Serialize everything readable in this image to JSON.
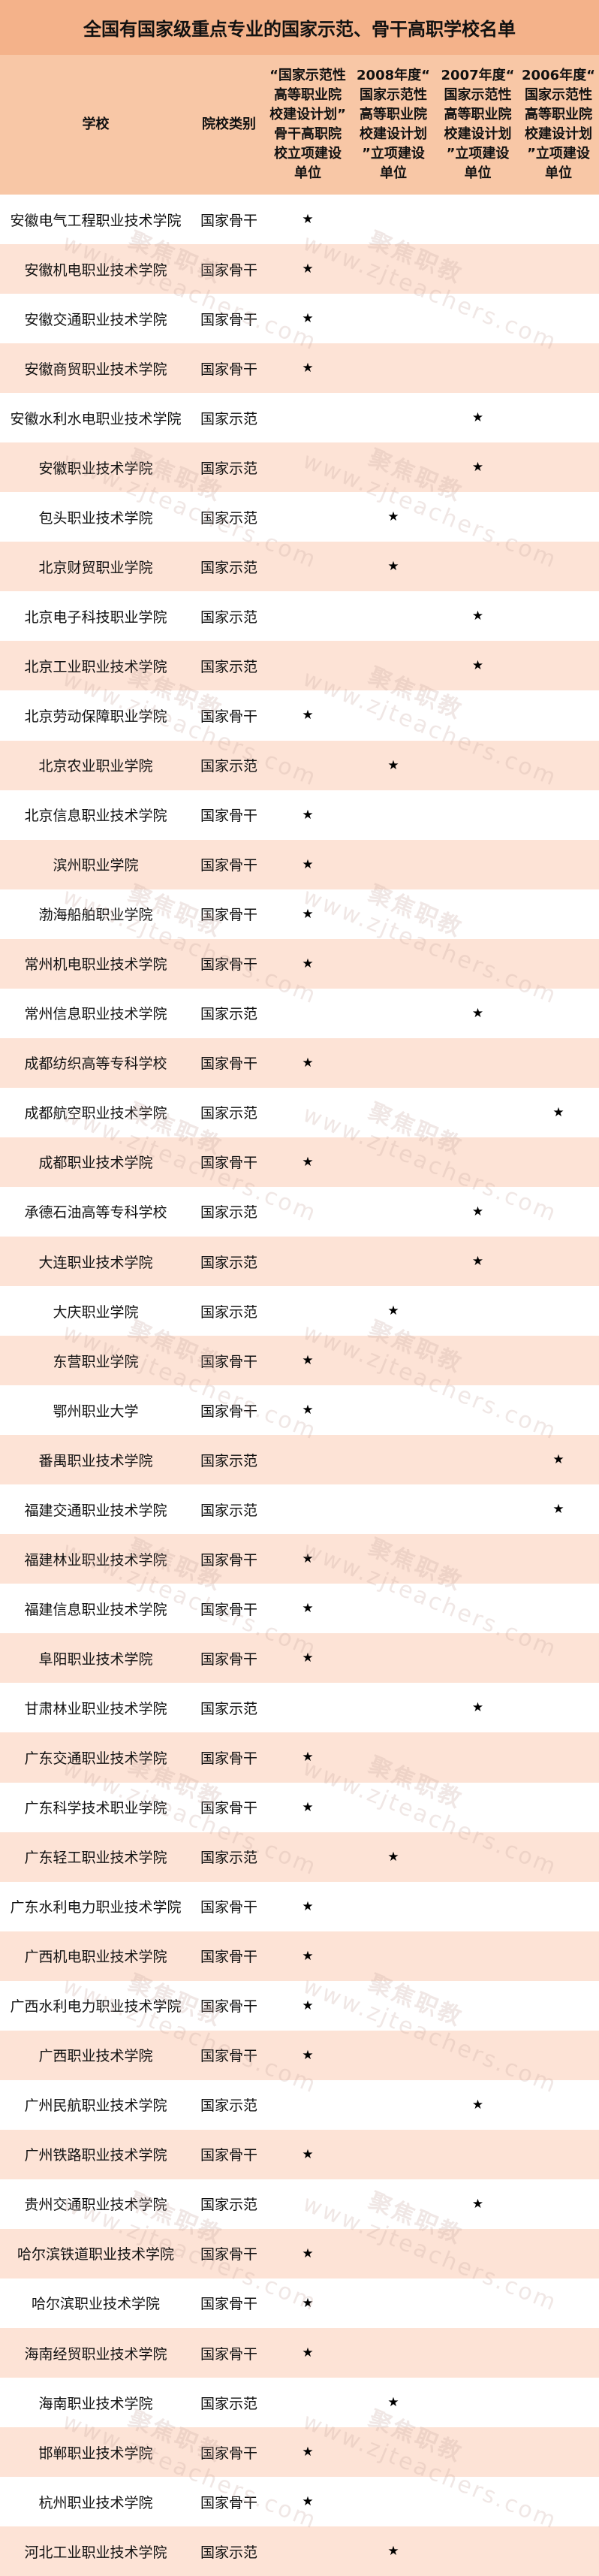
{
  "title": "全国有国家级重点专业的国家示范、骨干高职学校名单",
  "headers": [
    "学校",
    "院校类别",
    "“国家示范性\n高等职业院\n校建设计划”\n骨干高职院\n校立项建设\n单位",
    "2008年度“\n国家示范性\n高等职业院\n校建设计划\n”立项建设\n单位",
    "2007年度“\n国家示范性\n高等职业院\n校建设计划\n”立项建设\n单位",
    "2006年度“\n国家示范性\n高等职业院\n校建设计划\n”立项建设\n单位"
  ],
  "star_symbol": "★",
  "watermark": {
    "brand": "聚焦职教",
    "url": "www.zjteachers.com"
  },
  "colors": {
    "title_band": "#f4b28a",
    "header_row": "#f8c7a6",
    "stripe": "#fde3d6"
  },
  "rows": [
    {
      "school": "安徽电气工程职业技术学院",
      "type": "国家骨干",
      "col": 0
    },
    {
      "school": "安徽机电职业技术学院",
      "type": "国家骨干",
      "col": 0
    },
    {
      "school": "安徽交通职业技术学院",
      "type": "国家骨干",
      "col": 0
    },
    {
      "school": "安徽商贸职业技术学院",
      "type": "国家骨干",
      "col": 0
    },
    {
      "school": "安徽水利水电职业技术学院",
      "type": "国家示范",
      "col": 2
    },
    {
      "school": "安徽职业技术学院",
      "type": "国家示范",
      "col": 2
    },
    {
      "school": "包头职业技术学院",
      "type": "国家示范",
      "col": 1
    },
    {
      "school": "北京财贸职业学院",
      "type": "国家示范",
      "col": 1
    },
    {
      "school": "北京电子科技职业学院",
      "type": "国家示范",
      "col": 2
    },
    {
      "school": "北京工业职业技术学院",
      "type": "国家示范",
      "col": 2
    },
    {
      "school": "北京劳动保障职业学院",
      "type": "国家骨干",
      "col": 0
    },
    {
      "school": "北京农业职业学院",
      "type": "国家示范",
      "col": 1
    },
    {
      "school": "北京信息职业技术学院",
      "type": "国家骨干",
      "col": 0
    },
    {
      "school": "滨州职业学院",
      "type": "国家骨干",
      "col": 0
    },
    {
      "school": "渤海船舶职业学院",
      "type": "国家骨干",
      "col": 0
    },
    {
      "school": "常州机电职业技术学院",
      "type": "国家骨干",
      "col": 0
    },
    {
      "school": "常州信息职业技术学院",
      "type": "国家示范",
      "col": 2
    },
    {
      "school": "成都纺织高等专科学校",
      "type": "国家骨干",
      "col": 0
    },
    {
      "school": "成都航空职业技术学院",
      "type": "国家示范",
      "col": 3
    },
    {
      "school": "成都职业技术学院",
      "type": "国家骨干",
      "col": 0
    },
    {
      "school": "承德石油高等专科学校",
      "type": "国家示范",
      "col": 2
    },
    {
      "school": "大连职业技术学院",
      "type": "国家示范",
      "col": 2
    },
    {
      "school": "大庆职业学院",
      "type": "国家示范",
      "col": 1
    },
    {
      "school": "东营职业学院",
      "type": "国家骨干",
      "col": 0
    },
    {
      "school": "鄂州职业大学",
      "type": "国家骨干",
      "col": 0
    },
    {
      "school": "番禺职业技术学院",
      "type": "国家示范",
      "col": 3
    },
    {
      "school": "福建交通职业技术学院",
      "type": "国家示范",
      "col": 3
    },
    {
      "school": "福建林业职业技术学院",
      "type": "国家骨干",
      "col": 0
    },
    {
      "school": "福建信息职业技术学院",
      "type": "国家骨干",
      "col": 0
    },
    {
      "school": "阜阳职业技术学院",
      "type": "国家骨干",
      "col": 0
    },
    {
      "school": "甘肃林业职业技术学院",
      "type": "国家示范",
      "col": 2
    },
    {
      "school": "广东交通职业技术学院",
      "type": "国家骨干",
      "col": 0
    },
    {
      "school": "广东科学技术职业学院",
      "type": "国家骨干",
      "col": 0
    },
    {
      "school": "广东轻工职业技术学院",
      "type": "国家示范",
      "col": 1
    },
    {
      "school": "广东水利电力职业技术学院",
      "type": "国家骨干",
      "col": 0
    },
    {
      "school": "广西机电职业技术学院",
      "type": "国家骨干",
      "col": 0
    },
    {
      "school": "广西水利电力职业技术学院",
      "type": "国家骨干",
      "col": 0
    },
    {
      "school": "广西职业技术学院",
      "type": "国家骨干",
      "col": 0
    },
    {
      "school": "广州民航职业技术学院",
      "type": "国家示范",
      "col": 2
    },
    {
      "school": "广州铁路职业技术学院",
      "type": "国家骨干",
      "col": 0
    },
    {
      "school": "贵州交通职业技术学院",
      "type": "国家示范",
      "col": 2
    },
    {
      "school": "哈尔滨铁道职业技术学院",
      "type": "国家骨干",
      "col": 0
    },
    {
      "school": "哈尔滨职业技术学院",
      "type": "国家骨干",
      "col": 0
    },
    {
      "school": "海南经贸职业技术学院",
      "type": "国家骨干",
      "col": 0
    },
    {
      "school": "海南职业技术学院",
      "type": "国家示范",
      "col": 1
    },
    {
      "school": "邯郸职业技术学院",
      "type": "国家骨干",
      "col": 0
    },
    {
      "school": "杭州职业技术学院",
      "type": "国家骨干",
      "col": 0
    },
    {
      "school": "河北工业职业技术学院",
      "type": "国家示范",
      "col": 1
    }
  ]
}
